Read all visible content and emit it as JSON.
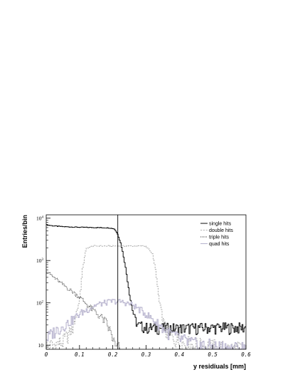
{
  "chart_data": {
    "type": "line",
    "title": "",
    "xlabel": "y residiuals [mm]",
    "ylabel": "Entries/bin",
    "xlim": [
      0,
      0.6
    ],
    "ylim": [
      8,
      12000
    ],
    "yscale": "log",
    "grid": false,
    "legend_position": "top-right",
    "x_ticks": [
      "0",
      "0.1",
      "0.2",
      "0.3",
      "0.4",
      "0.5",
      "0.6"
    ],
    "y_ticks": [
      {
        "base": "10",
        "exp": ""
      },
      {
        "base": "10",
        "exp": "2"
      },
      {
        "base": "10",
        "exp": "3"
      },
      {
        "base": "10",
        "exp": "4"
      }
    ],
    "vertical_line_x": 0.215,
    "series": [
      {
        "name": "single hits",
        "color": "#000000",
        "style": "solid",
        "x": [
          0,
          0.02,
          0.05,
          0.1,
          0.15,
          0.19,
          0.205,
          0.215,
          0.225,
          0.235,
          0.245,
          0.255,
          0.265,
          0.275,
          0.3,
          0.4,
          0.5,
          0.6
        ],
        "y": [
          7000,
          6600,
          6300,
          6100,
          6000,
          5900,
          5600,
          4200,
          2400,
          1000,
          320,
          100,
          45,
          30,
          26,
          25,
          26,
          26
        ]
      },
      {
        "name": "double hits",
        "color": "#9a9a9a",
        "style": "dashed",
        "x": [
          0,
          0.02,
          0.05,
          0.08,
          0.1,
          0.11,
          0.12,
          0.14,
          0.2,
          0.26,
          0.3,
          0.32,
          0.33,
          0.34,
          0.36,
          0.4,
          0.45,
          0.5,
          0.55,
          0.6
        ],
        "y": [
          9,
          10,
          12,
          25,
          120,
          700,
          1900,
          2200,
          2200,
          2200,
          2200,
          1400,
          500,
          100,
          20,
          12,
          10,
          9,
          8,
          8
        ]
      },
      {
        "name": "triple hits",
        "color": "#222222",
        "style": "dotted",
        "x": [
          0,
          0.02,
          0.05,
          0.1,
          0.13,
          0.16,
          0.18,
          0.2,
          0.205,
          0.21,
          0.22
        ],
        "y": [
          580,
          420,
          270,
          140,
          80,
          50,
          35,
          15,
          10,
          8,
          8
        ]
      },
      {
        "name": "quad hits",
        "color": "#b9b5cf",
        "style": "solid",
        "x": [
          0,
          0.02,
          0.05,
          0.08,
          0.1,
          0.15,
          0.2,
          0.23,
          0.26,
          0.3,
          0.33,
          0.36,
          0.4,
          0.45,
          0.5,
          0.55,
          0.6
        ],
        "y": [
          14,
          20,
          28,
          40,
          55,
          90,
          110,
          105,
          90,
          55,
          35,
          22,
          14,
          10,
          9,
          8,
          8
        ]
      }
    ]
  }
}
